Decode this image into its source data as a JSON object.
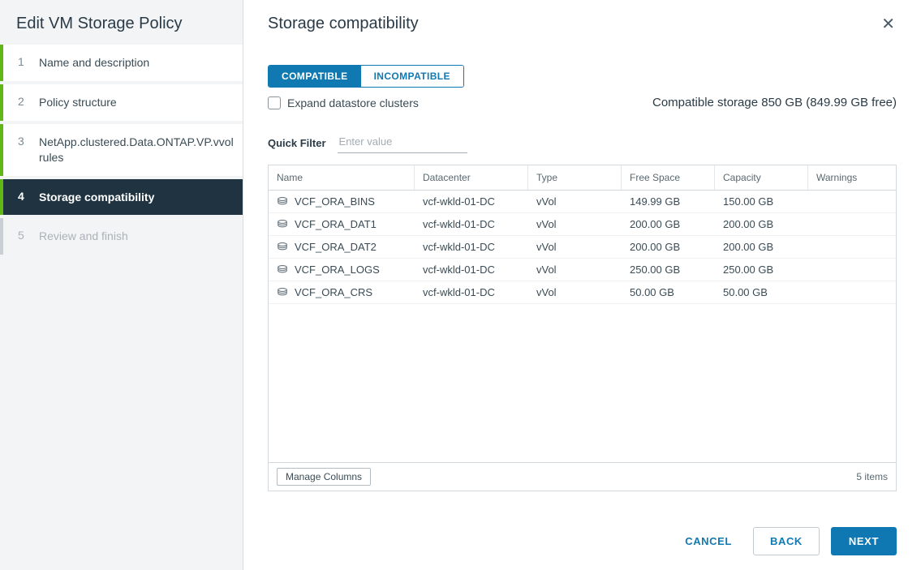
{
  "wizard": {
    "title": "Edit VM Storage Policy",
    "steps": [
      {
        "num": "1",
        "label": "Name and description",
        "state": "done"
      },
      {
        "num": "2",
        "label": "Policy structure",
        "state": "done"
      },
      {
        "num": "3",
        "label": "NetApp.clustered.Data.ONTAP.VP.vvol rules",
        "state": "done"
      },
      {
        "num": "4",
        "label": "Storage compatibility",
        "state": "active"
      },
      {
        "num": "5",
        "label": "Review and finish",
        "state": "upcoming"
      }
    ]
  },
  "page": {
    "title": "Storage compatibility",
    "tabs": {
      "compatible": "COMPATIBLE",
      "incompatible": "INCOMPATIBLE"
    },
    "expand_label": "Expand datastore clusters",
    "summary": "Compatible storage 850 GB (849.99 GB free)",
    "filter_label": "Quick Filter",
    "filter_placeholder": "Enter value"
  },
  "table": {
    "columns": [
      "Name",
      "Datacenter",
      "Type",
      "Free Space",
      "Capacity",
      "Warnings"
    ],
    "rows": [
      {
        "name": "VCF_ORA_BINS",
        "dc": "vcf-wkld-01-DC",
        "type": "vVol",
        "free": "149.99 GB",
        "cap": "150.00 GB",
        "warn": ""
      },
      {
        "name": "VCF_ORA_DAT1",
        "dc": "vcf-wkld-01-DC",
        "type": "vVol",
        "free": "200.00 GB",
        "cap": "200.00 GB",
        "warn": ""
      },
      {
        "name": "VCF_ORA_DAT2",
        "dc": "vcf-wkld-01-DC",
        "type": "vVol",
        "free": "200.00 GB",
        "cap": "200.00 GB",
        "warn": ""
      },
      {
        "name": "VCF_ORA_LOGS",
        "dc": "vcf-wkld-01-DC",
        "type": "vVol",
        "free": "250.00 GB",
        "cap": "250.00 GB",
        "warn": ""
      },
      {
        "name": "VCF_ORA_CRS",
        "dc": "vcf-wkld-01-DC",
        "type": "vVol",
        "free": "50.00 GB",
        "cap": "50.00 GB",
        "warn": ""
      }
    ],
    "manage_label": "Manage Columns",
    "count_label": "5 items"
  },
  "footer": {
    "cancel": "CANCEL",
    "back": "BACK",
    "next": "NEXT"
  }
}
